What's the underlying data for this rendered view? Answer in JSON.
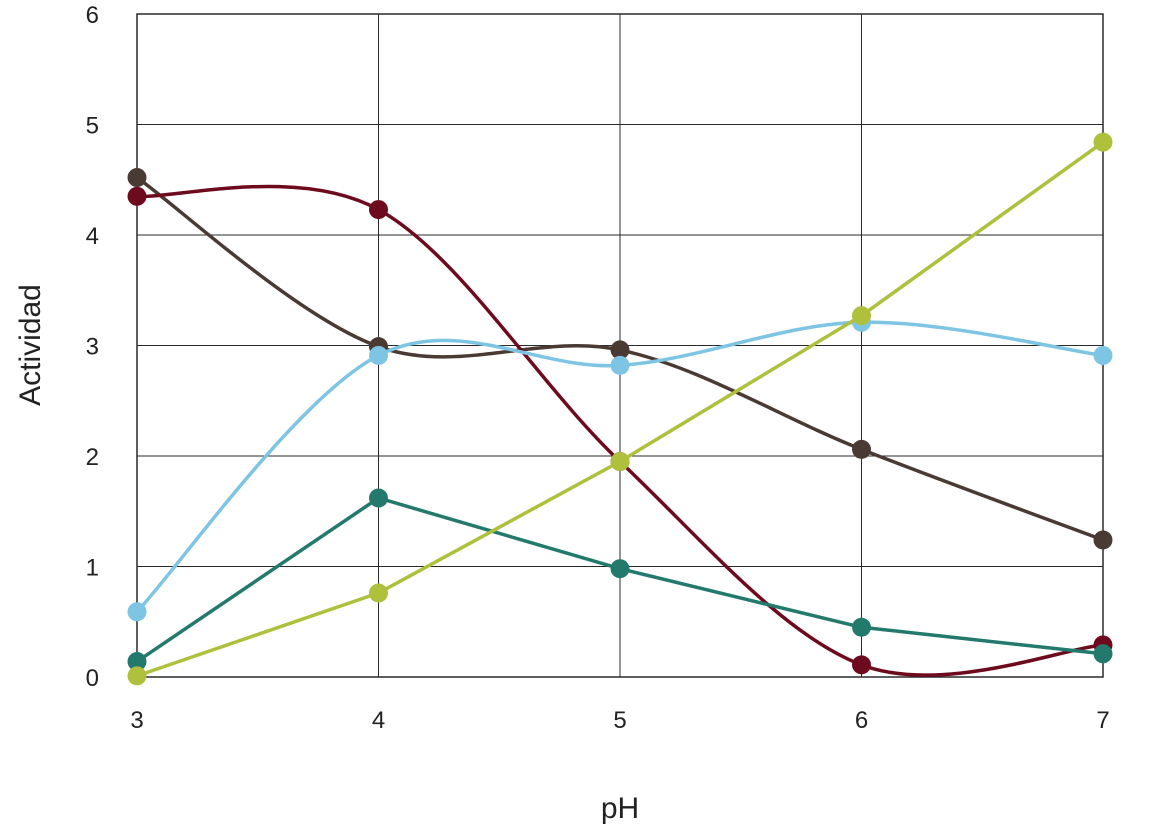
{
  "chart_data": {
    "type": "line",
    "title": "",
    "xlabel": "pH",
    "ylabel": "Actividad",
    "x": [
      3,
      4,
      5,
      6,
      7
    ],
    "xlim": [
      3,
      7
    ],
    "ylim": [
      0,
      6
    ],
    "x_ticks": [
      "3",
      "4",
      "5",
      "6",
      "7"
    ],
    "y_ticks": [
      "0",
      "1",
      "2",
      "3",
      "4",
      "5",
      "6"
    ],
    "grid": true,
    "legend": "none",
    "series": [
      {
        "color": "#4a3a34",
        "smooth": true,
        "values": [
          4.52,
          2.99,
          2.96,
          2.06,
          1.24
        ]
      },
      {
        "color": "#6e0a1e",
        "smooth": true,
        "values": [
          4.35,
          4.23,
          1.95,
          0.11,
          0.29
        ]
      },
      {
        "color": "#7ec4e3",
        "smooth": true,
        "values": [
          0.59,
          2.91,
          2.82,
          3.21,
          2.91
        ]
      },
      {
        "color": "#237a6c",
        "smooth": false,
        "values": [
          0.14,
          1.62,
          0.98,
          0.45,
          0.21
        ]
      },
      {
        "color": "#aec03c",
        "smooth": false,
        "values": [
          0.01,
          0.76,
          1.95,
          3.27,
          4.84
        ]
      }
    ]
  }
}
